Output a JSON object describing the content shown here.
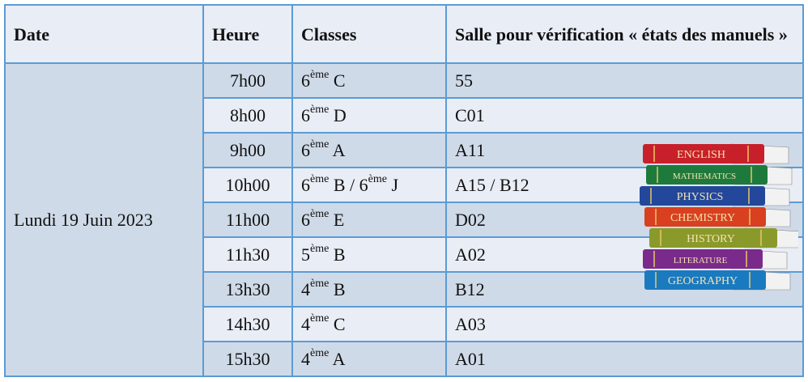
{
  "table": {
    "headers": [
      "Date",
      "Heure",
      "Classes",
      "Salle pour vérification « états des manuels »"
    ],
    "date": "Lundi 19 Juin 2023",
    "rows": [
      {
        "heure": "7h00",
        "classes": [
          {
            "n": "6",
            "sup": "ème",
            "l": " C"
          }
        ],
        "salle": "55"
      },
      {
        "heure": "8h00",
        "classes": [
          {
            "n": "6",
            "sup": "ème",
            "l": " D"
          }
        ],
        "salle": "C01"
      },
      {
        "heure": "9h00",
        "classes": [
          {
            "n": "6",
            "sup": "ème",
            "l": " A"
          }
        ],
        "salle": "A11"
      },
      {
        "heure": "10h00",
        "classes": [
          {
            "n": "6",
            "sup": "ème",
            "l": " B / "
          },
          {
            "n": "6",
            "sup": "ème",
            "l": " J"
          }
        ],
        "salle": "A15 / B12"
      },
      {
        "heure": "11h00",
        "classes": [
          {
            "n": "6",
            "sup": "ème",
            "l": " E"
          }
        ],
        "salle": "D02"
      },
      {
        "heure": "11h30",
        "classes": [
          {
            "n": "5",
            "sup": "ème",
            "l": " B"
          }
        ],
        "salle": "A02"
      },
      {
        "heure": "13h30",
        "classes": [
          {
            "n": "4",
            "sup": "ème",
            "l": " B"
          }
        ],
        "salle": "B12"
      },
      {
        "heure": "14h30",
        "classes": [
          {
            "n": "4",
            "sup": "ème",
            "l": " C"
          }
        ],
        "salle": "A03"
      },
      {
        "heure": "15h30",
        "classes": [
          {
            "n": "4",
            "sup": "ème",
            "l": " A"
          }
        ],
        "salle": "A01"
      }
    ]
  },
  "image": {
    "books": [
      {
        "label": "ENGLISH",
        "color": "#c8202a"
      },
      {
        "label": "MATHEMATICS",
        "color": "#1e7a3c"
      },
      {
        "label": "PHYSICS",
        "color": "#23479a"
      },
      {
        "label": "CHEMISTRY",
        "color": "#d8401f"
      },
      {
        "label": "HISTORY",
        "color": "#8a9a2a"
      },
      {
        "label": "LITERATURE",
        "color": "#7a2a8a"
      },
      {
        "label": "GEOGRAPHY",
        "color": "#1a7ac0"
      }
    ]
  },
  "colors": {
    "border": "#5b9bd5",
    "row_dark": "#cfdae8",
    "row_light": "#e9edf5"
  }
}
